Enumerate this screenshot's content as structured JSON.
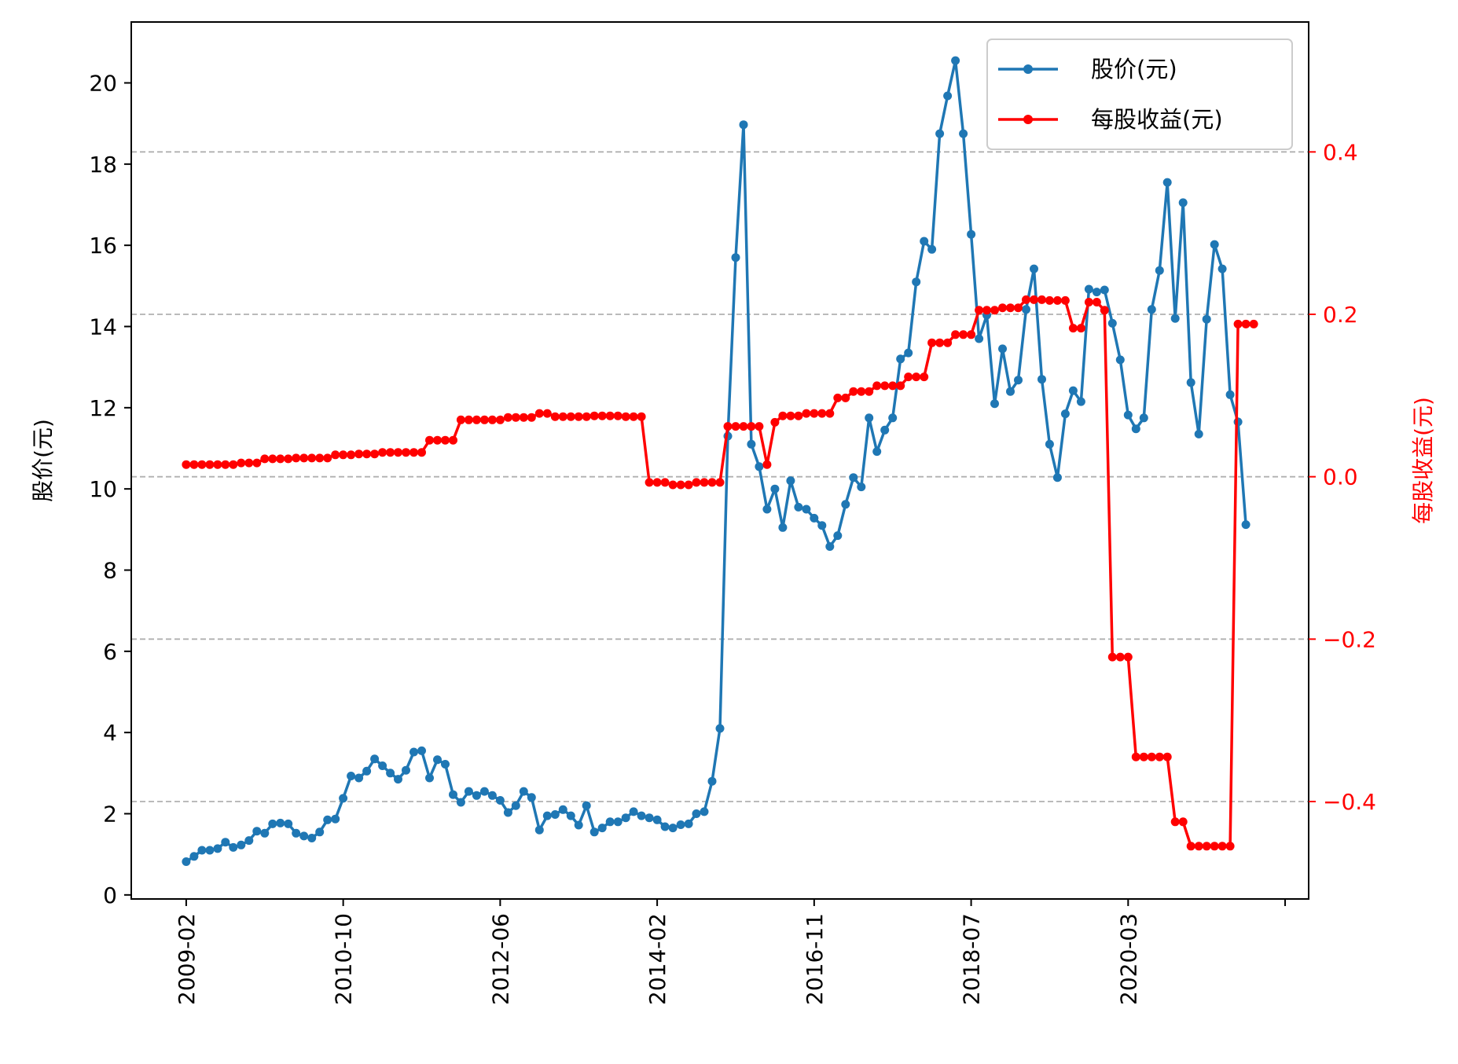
{
  "chart_data": {
    "type": "line",
    "title": "",
    "xlabel": "",
    "ylabel_left": "股价(元)",
    "ylabel_right": "每股收益(元)",
    "x_tick_labels": [
      "2009-02",
      "2010-10",
      "2012-06",
      "2014-02",
      "2016-11",
      "2018-07",
      "2020-03"
    ],
    "y_left_ticks": [
      "0",
      "2",
      "4",
      "6",
      "8",
      "10",
      "12",
      "14",
      "16",
      "18",
      "20"
    ],
    "y_right_ticks": [
      "−0.4",
      "−0.2",
      "0.0",
      "0.2",
      "0.4"
    ],
    "y_left_lim": [
      -0.1,
      21.5
    ],
    "y_right_lim": [
      -0.52,
      0.56
    ],
    "x_index_lim": [
      -7,
      143
    ],
    "grid": "horizontal dashed at right-axis ticks",
    "legend_position": "top-right",
    "colors": {
      "price": "#1f77b4",
      "eps": "#ff0000",
      "grid": "#b0b0b0"
    },
    "series": [
      {
        "name": "股价(元)",
        "axis": "left",
        "values": [
          0.82,
          0.95,
          1.1,
          1.1,
          1.14,
          1.3,
          1.17,
          1.23,
          1.34,
          1.57,
          1.52,
          1.75,
          1.77,
          1.75,
          1.52,
          1.45,
          1.4,
          1.55,
          1.85,
          1.87,
          2.38,
          2.93,
          2.88,
          3.05,
          3.35,
          3.18,
          3.0,
          2.85,
          3.07,
          3.52,
          3.55,
          2.88,
          3.33,
          3.22,
          2.47,
          2.28,
          2.55,
          2.45,
          2.55,
          2.45,
          2.33,
          2.03,
          2.2,
          2.55,
          2.4,
          1.6,
          1.95,
          1.98,
          2.1,
          1.95,
          1.72,
          2.2,
          1.55,
          1.65,
          1.8,
          1.8,
          1.9,
          2.05,
          1.95,
          1.9,
          1.85,
          1.68,
          1.65,
          1.73,
          1.75,
          2.0,
          2.05,
          2.8,
          4.1,
          11.3,
          15.7,
          18.97,
          11.1,
          10.55,
          9.5,
          10.0,
          9.05,
          10.2,
          9.55,
          9.5,
          9.28,
          9.1,
          8.58,
          8.85,
          9.62,
          10.28,
          10.05,
          11.75,
          10.92,
          11.45,
          11.75,
          13.2,
          13.35,
          15.1,
          16.1,
          15.9,
          18.75,
          19.68,
          20.55,
          18.75,
          16.27,
          13.7,
          14.28,
          12.1,
          13.45,
          12.4,
          12.68,
          14.42,
          15.42,
          12.7,
          11.1,
          10.28,
          11.85,
          12.42,
          12.15,
          14.92,
          14.85,
          14.9,
          14.08,
          13.18,
          11.82,
          11.48,
          11.75,
          14.42,
          15.38,
          17.55,
          14.2,
          17.05,
          12.62,
          11.35,
          14.18,
          16.02,
          15.42,
          12.32,
          11.65,
          9.12
        ]
      },
      {
        "name": "每股收益(元)",
        "axis": "right",
        "values": [
          0.015,
          0.015,
          0.015,
          0.015,
          0.015,
          0.015,
          0.015,
          0.017,
          0.017,
          0.017,
          0.022,
          0.022,
          0.022,
          0.022,
          0.023,
          0.023,
          0.023,
          0.023,
          0.023,
          0.027,
          0.027,
          0.027,
          0.028,
          0.028,
          0.028,
          0.03,
          0.03,
          0.03,
          0.03,
          0.03,
          0.03,
          0.045,
          0.045,
          0.045,
          0.045,
          0.07,
          0.07,
          0.07,
          0.07,
          0.07,
          0.07,
          0.073,
          0.073,
          0.073,
          0.073,
          0.078,
          0.078,
          0.074,
          0.074,
          0.074,
          0.074,
          0.074,
          0.075,
          0.075,
          0.075,
          0.075,
          0.074,
          0.074,
          0.074,
          -0.007,
          -0.007,
          -0.007,
          -0.01,
          -0.01,
          -0.01,
          -0.007,
          -0.007,
          -0.007,
          -0.007,
          0.062,
          0.062,
          0.062,
          0.062,
          0.062,
          0.015,
          0.067,
          0.075,
          0.075,
          0.075,
          0.078,
          0.078,
          0.078,
          0.078,
          0.097,
          0.097,
          0.105,
          0.105,
          0.105,
          0.112,
          0.112,
          0.112,
          0.112,
          0.123,
          0.123,
          0.123,
          0.165,
          0.165,
          0.165,
          0.175,
          0.175,
          0.175,
          0.205,
          0.205,
          0.205,
          0.208,
          0.208,
          0.208,
          0.218,
          0.218,
          0.218,
          0.217,
          0.217,
          0.217,
          0.183,
          0.183,
          0.215,
          0.215,
          0.205,
          -0.222,
          -0.222,
          -0.222,
          -0.345,
          -0.345,
          -0.345,
          -0.345,
          -0.345,
          -0.425,
          -0.425,
          -0.455,
          -0.455,
          -0.455,
          -0.455,
          -0.455,
          -0.455,
          0.188,
          0.188,
          0.188
        ]
      }
    ]
  }
}
